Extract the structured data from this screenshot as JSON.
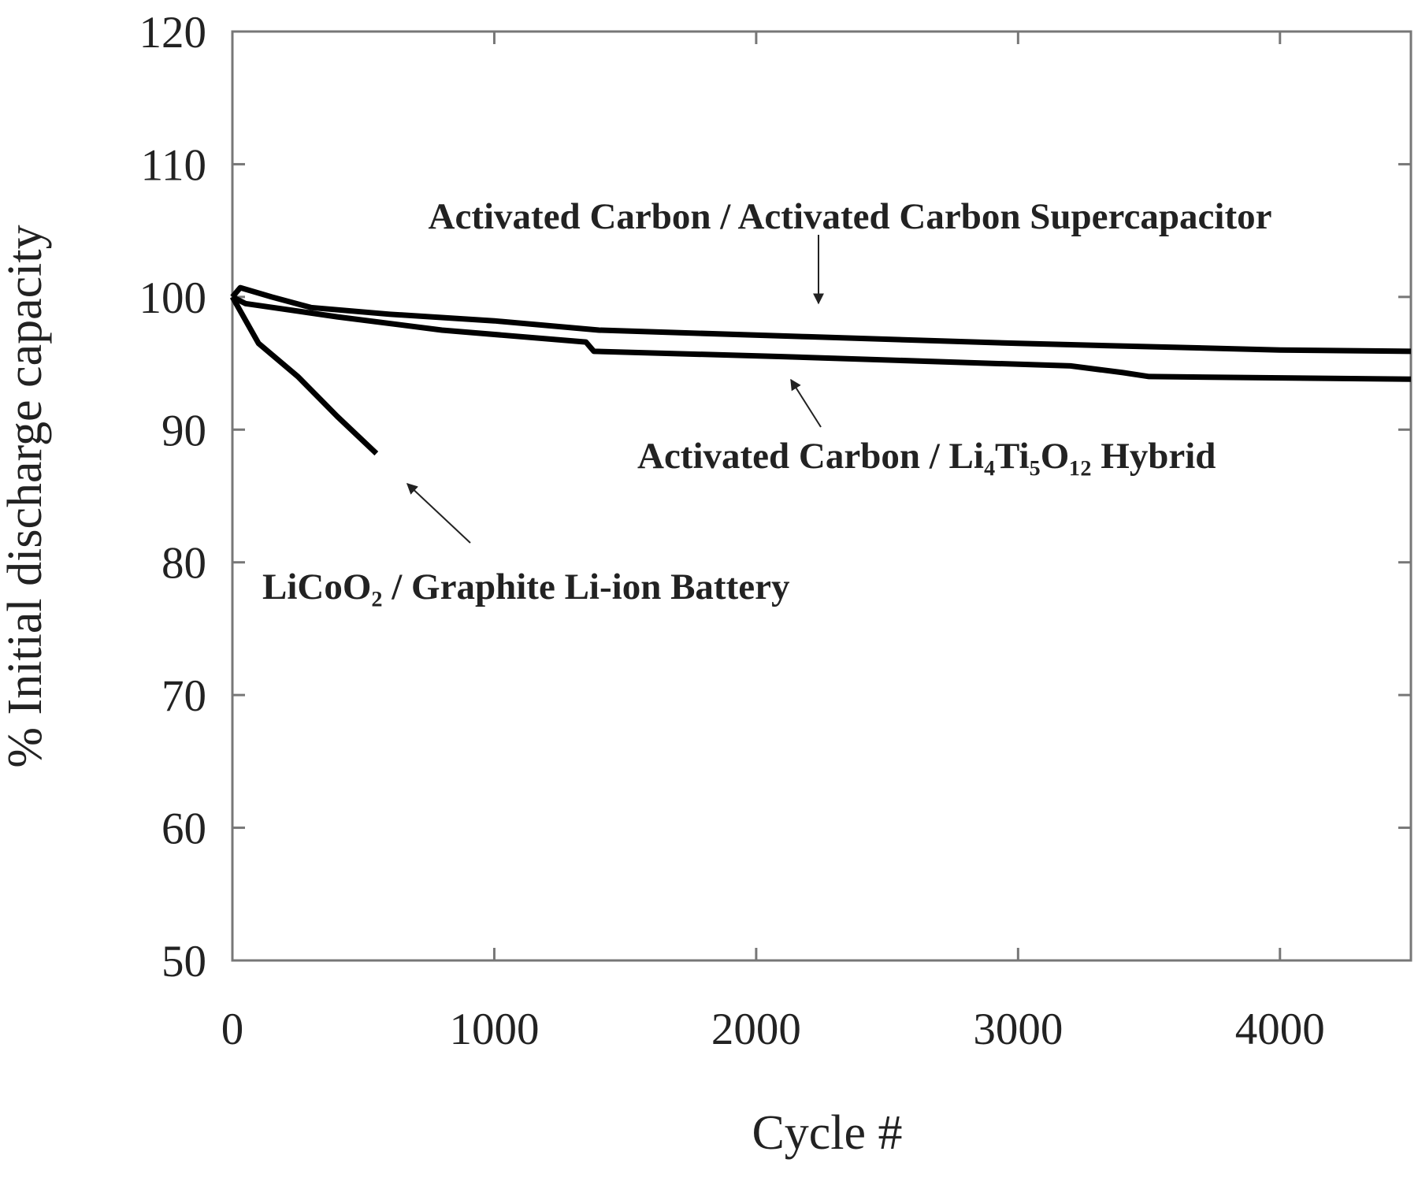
{
  "chart_data": {
    "type": "line",
    "x_label": "Cycle #",
    "y_label": "% Initial discharge capacity",
    "xlim": [
      0,
      4500
    ],
    "xticks": [
      0,
      1000,
      2000,
      3000,
      4000
    ],
    "ylim": [
      50,
      120
    ],
    "yticks": [
      50,
      60,
      70,
      80,
      90,
      100,
      110,
      120
    ],
    "series": [
      {
        "name": "Activated Carbon / Activated Carbon Supercapacitor",
        "color": "#000000",
        "x": [
          0,
          30,
          150,
          300,
          600,
          1000,
          1400,
          2200,
          3000,
          4000,
          4500
        ],
        "values": [
          100,
          100.7,
          100,
          99.2,
          98.7,
          98.2,
          97.5,
          97,
          96.5,
          96,
          95.9
        ]
      },
      {
        "name": "Activated Carbon / Li₄Ti₅O₁₂ Hybrid",
        "color": "#000000",
        "x": [
          0,
          50,
          400,
          800,
          1350,
          1380,
          2100,
          3200,
          3400,
          3500,
          4500
        ],
        "values": [
          100,
          99.5,
          98.5,
          97.5,
          96.6,
          95.9,
          95.5,
          94.8,
          94.3,
          94,
          93.8
        ]
      },
      {
        "name": "LiCoO₂ / Graphite Li-ion Battery",
        "color": "#000000",
        "x": [
          0,
          100,
          250,
          400,
          550
        ],
        "values": [
          100,
          96.5,
          94,
          91,
          88.2
        ]
      }
    ]
  }
}
